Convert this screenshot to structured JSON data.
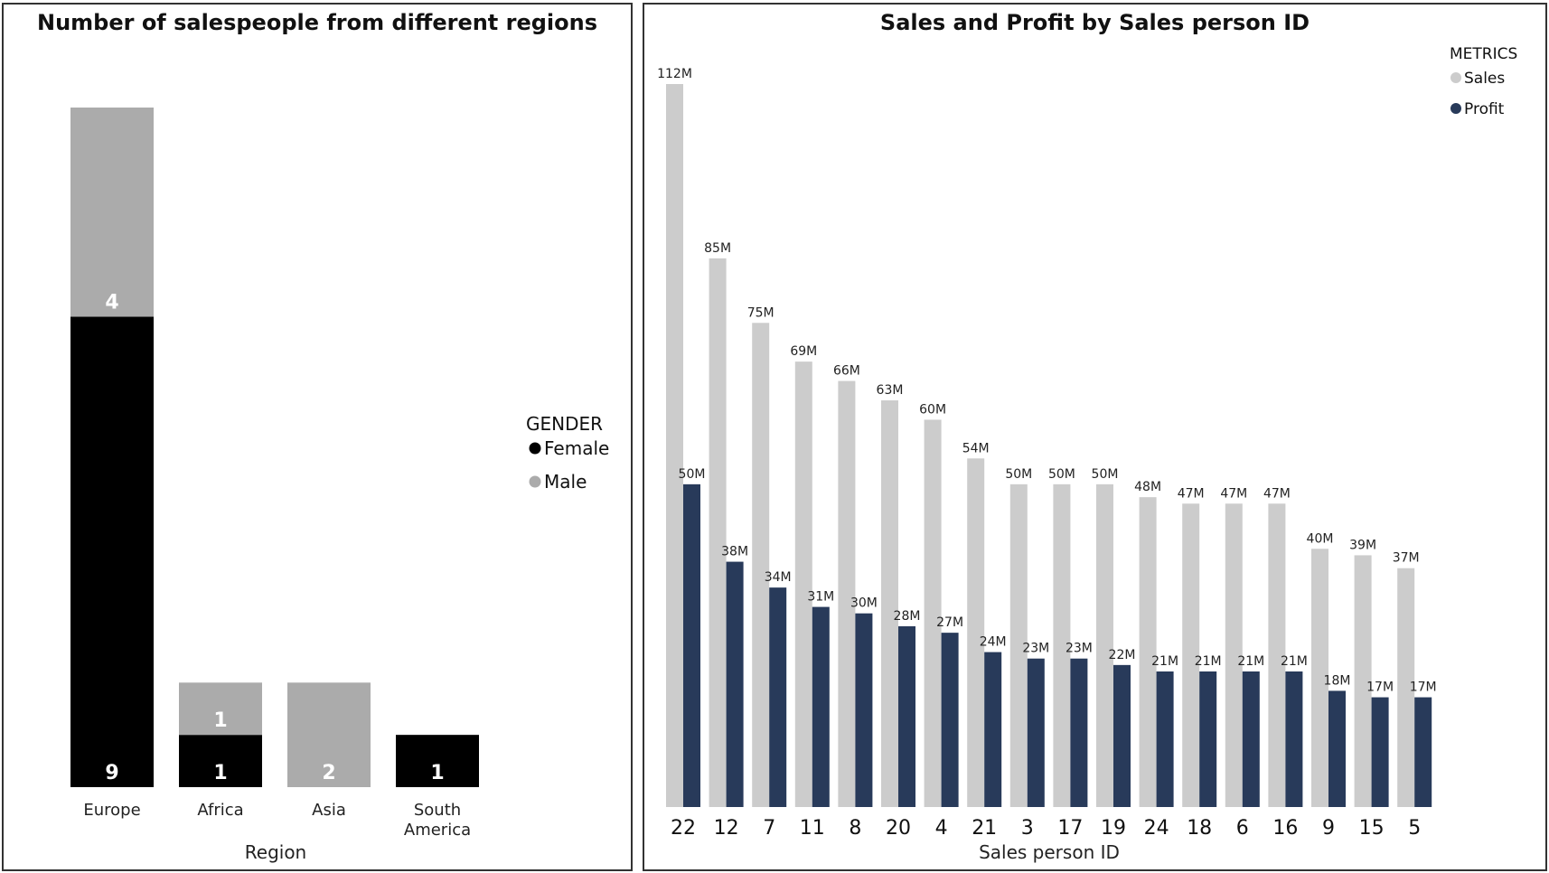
{
  "chart_data": [
    {
      "type": "bar",
      "stacked": true,
      "title": "Number of salespeople from different regions",
      "xlabel": "Region",
      "ylabel": "",
      "categories": [
        "Europe",
        "Africa",
        "Asia",
        "South America"
      ],
      "series": [
        {
          "name": "Female",
          "values": [
            9,
            1,
            0,
            1
          ],
          "color": "#000000"
        },
        {
          "name": "Male",
          "values": [
            4,
            1,
            2,
            0
          ],
          "color": "#ababab"
        }
      ],
      "ylim": [
        0,
        13
      ],
      "grid": false,
      "legend": {
        "title": "GENDER",
        "placement": "right"
      }
    },
    {
      "type": "bar",
      "title": "Sales and Profit by Sales person ID",
      "xlabel": "Sales person ID",
      "ylabel": "",
      "categories": [
        "22",
        "12",
        "7",
        "11",
        "8",
        "20",
        "4",
        "21",
        "3",
        "17",
        "19",
        "24",
        "18",
        "6",
        "16",
        "9",
        "15",
        "5"
      ],
      "series": [
        {
          "name": "Sales",
          "values": [
            112,
            85,
            75,
            69,
            66,
            63,
            60,
            54,
            50,
            50,
            50,
            48,
            47,
            47,
            47,
            40,
            39,
            37
          ],
          "color": "#cccccc"
        },
        {
          "name": "Profit",
          "values": [
            50,
            38,
            34,
            31,
            30,
            28,
            27,
            24,
            23,
            23,
            22,
            21,
            21,
            21,
            21,
            18,
            17,
            17
          ],
          "color": "#283a5a"
        }
      ],
      "value_suffix": "M",
      "ylim": [
        0,
        112
      ],
      "grid": false,
      "legend": {
        "title": "METRICS",
        "placement": "top-right"
      }
    }
  ]
}
